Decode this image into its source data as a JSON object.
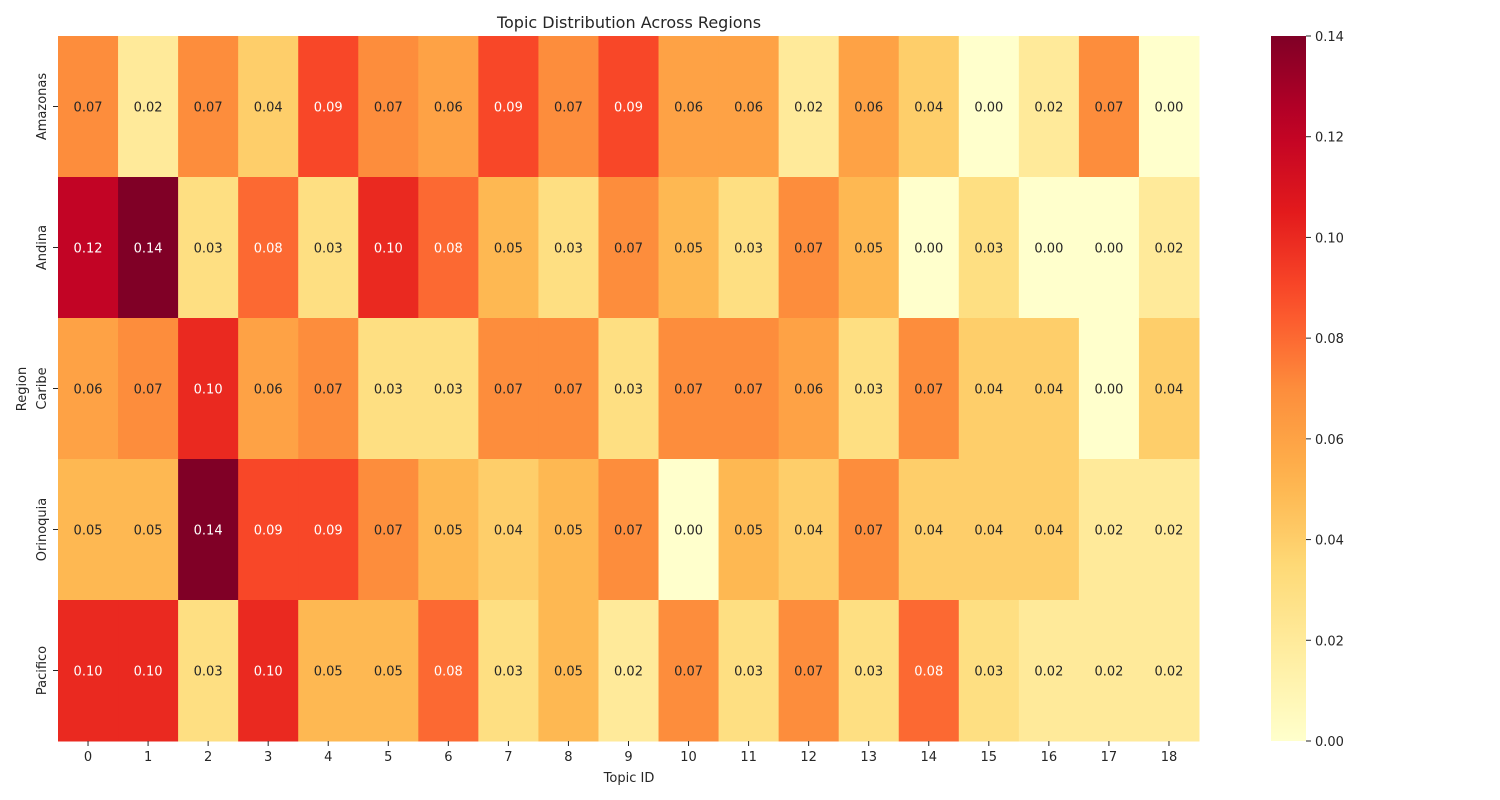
{
  "chart_data": {
    "type": "heatmap",
    "title": "Topic Distribution Across Regions",
    "xlabel": "Topic ID",
    "ylabel": "Region",
    "x": [
      "0",
      "1",
      "2",
      "3",
      "4",
      "5",
      "6",
      "7",
      "8",
      "9",
      "10",
      "11",
      "12",
      "13",
      "14",
      "15",
      "16",
      "17",
      "18"
    ],
    "y": [
      "Amazonas",
      "Andina",
      "Caribe",
      "Orinoquia",
      "Pacifico"
    ],
    "values": [
      [
        0.07,
        0.02,
        0.07,
        0.04,
        0.09,
        0.07,
        0.06,
        0.09,
        0.07,
        0.09,
        0.06,
        0.06,
        0.02,
        0.06,
        0.04,
        0.0,
        0.02,
        0.07,
        0.0
      ],
      [
        0.12,
        0.14,
        0.03,
        0.08,
        0.03,
        0.1,
        0.08,
        0.05,
        0.03,
        0.07,
        0.05,
        0.03,
        0.07,
        0.05,
        0.0,
        0.03,
        0.0,
        0.0,
        0.02
      ],
      [
        0.06,
        0.07,
        0.1,
        0.06,
        0.07,
        0.03,
        0.03,
        0.07,
        0.07,
        0.03,
        0.07,
        0.07,
        0.06,
        0.03,
        0.07,
        0.04,
        0.04,
        0.0,
        0.04
      ],
      [
        0.05,
        0.05,
        0.14,
        0.09,
        0.09,
        0.07,
        0.05,
        0.04,
        0.05,
        0.07,
        0.0,
        0.05,
        0.04,
        0.07,
        0.04,
        0.04,
        0.04,
        0.02,
        0.02
      ],
      [
        0.1,
        0.1,
        0.03,
        0.1,
        0.05,
        0.05,
        0.08,
        0.03,
        0.05,
        0.02,
        0.07,
        0.03,
        0.07,
        0.03,
        0.08,
        0.03,
        0.02,
        0.02,
        0.02
      ]
    ],
    "value_format": "0.00",
    "colormap": "YlOrRd",
    "color_range": [
      0,
      0.14
    ],
    "colorbar_ticks": [
      "0.00",
      "0.02",
      "0.04",
      "0.06",
      "0.08",
      "0.10",
      "0.12",
      "0.14"
    ],
    "colorbar_tick_values": [
      0,
      0.02,
      0.04,
      0.06,
      0.08,
      0.1,
      0.12,
      0.14
    ],
    "colorbar_placement": "right",
    "grid": false
  }
}
